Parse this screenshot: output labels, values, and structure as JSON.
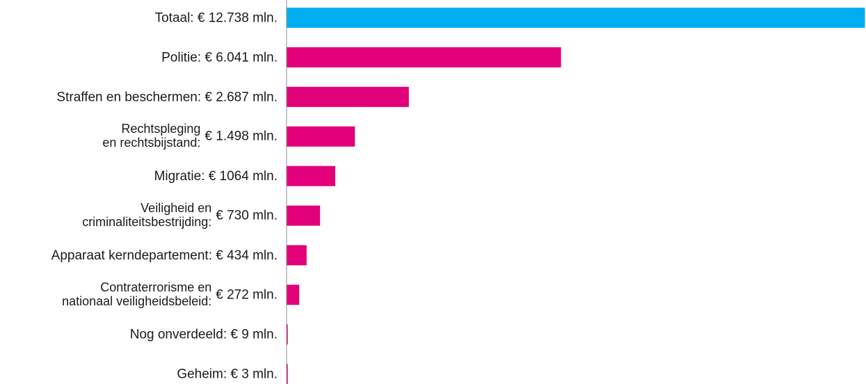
{
  "chart_data": {
    "type": "bar",
    "orientation": "horizontal",
    "unit": "mln.",
    "grid": false,
    "xlim": [
      0,
      12738
    ],
    "total_color": "#00aeef",
    "bar_color": "#e2007a",
    "axis_color": "#8c8c8c",
    "categories": [
      {
        "name": "Totaal:",
        "name_lines": [
          "Totaal:"
        ],
        "value_label": "€ 12.738 mln.",
        "value": 12738,
        "is_total": true
      },
      {
        "name": "Politie:",
        "name_lines": [
          "Politie:"
        ],
        "value_label": "€ 6.041 mln.",
        "value": 6041,
        "is_total": false
      },
      {
        "name": "Straffen en beschermen:",
        "name_lines": [
          "Straffen en beschermen:"
        ],
        "value_label": "€ 2.687 mln.",
        "value": 2687,
        "is_total": false
      },
      {
        "name": "Rechtspleging en rechtsbijstand:",
        "name_lines": [
          "Rechtspleging",
          "en rechtsbijstand:"
        ],
        "value_label": "€ 1.498 mln.",
        "value": 1498,
        "is_total": false
      },
      {
        "name": "Migratie:",
        "name_lines": [
          "Migratie:"
        ],
        "value_label": "€ 1064 mln.",
        "value": 1064,
        "is_total": false
      },
      {
        "name": "Veiligheid en criminaliteitsbestrijding:",
        "name_lines": [
          "Veiligheid en",
          "criminaliteitsbestrijding:"
        ],
        "value_label": "€ 730 mln.",
        "value": 730,
        "is_total": false
      },
      {
        "name": "Apparaat kerndepartement:",
        "name_lines": [
          "Apparaat kerndepartement:"
        ],
        "value_label": "€ 434 mln.",
        "value": 434,
        "is_total": false
      },
      {
        "name": "Contraterrorisme en nationaal veiligheidsbeleid:",
        "name_lines": [
          "Contraterrorisme en",
          "nationaal veiligheidsbeleid:"
        ],
        "value_label": "€ 272 mln.",
        "value": 272,
        "is_total": false
      },
      {
        "name": "Nog onverdeeld:",
        "name_lines": [
          "Nog onverdeeld:"
        ],
        "value_label": "€ 9 mln.",
        "value": 9,
        "is_total": false
      },
      {
        "name": "Geheim:",
        "name_lines": [
          "Geheim:"
        ],
        "value_label": "€ 3 mln.",
        "value": 3,
        "is_total": false
      }
    ]
  }
}
